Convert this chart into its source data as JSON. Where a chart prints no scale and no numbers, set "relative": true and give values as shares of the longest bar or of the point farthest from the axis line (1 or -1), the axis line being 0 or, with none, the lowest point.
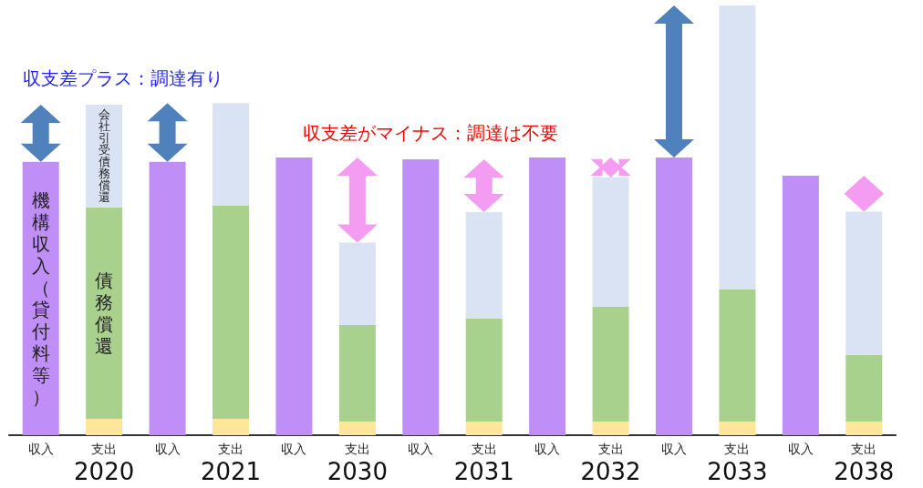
{
  "chart_data": {
    "type": "bar",
    "relative": true,
    "stacked": true,
    "categories": [
      "収入",
      "支出",
      "収入",
      "支出",
      "収入",
      "支出",
      "収入",
      "支出",
      "収入",
      "支出",
      "収入",
      "支出",
      "収入",
      "支出"
    ],
    "series": [
      {
        "name": "機構収入（貸付料等）",
        "color": "#bf8ff7",
        "values": [
          0.636,
          null,
          0.636,
          null,
          0.646,
          null,
          0.642,
          null,
          0.646,
          null,
          0.646,
          null,
          0.604,
          null
        ]
      },
      {
        "color": "#ffe699",
        "values": [
          null,
          0.038,
          null,
          0.038,
          null,
          0.032,
          null,
          0.032,
          null,
          0.032,
          null,
          0.032,
          null,
          0.032
        ]
      },
      {
        "name": "債務償還",
        "color": "#a9d18e",
        "values": [
          null,
          0.492,
          null,
          0.496,
          null,
          0.225,
          null,
          0.239,
          null,
          0.267,
          null,
          0.307,
          null,
          0.155
        ]
      },
      {
        "name": "会社引受債務償還",
        "color": "#dae3f3",
        "values": [
          null,
          0.239,
          null,
          0.239,
          null,
          0.191,
          null,
          0.248,
          null,
          0.301,
          null,
          0.661,
          null,
          0.333
        ]
      }
    ],
    "annotations": [
      "収支差プラス：調達有り",
      "収支差がマイナス：調達は不要",
      "2020",
      "2021",
      "2030",
      "2031",
      "2032",
      "2033",
      "2038"
    ]
  }
}
